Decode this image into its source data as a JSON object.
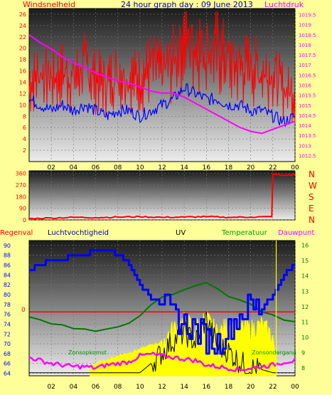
{
  "colors": {
    "background": "#ffff99",
    "wind": "#ff0000",
    "gust": "#0000ff",
    "pressure": "#ff00ff",
    "humidity": "#0000ff",
    "temperature": "#007700",
    "dewpoint": "#ff00ff",
    "uv": "#000000",
    "solar": "#ffff00",
    "rain": "#ff0000",
    "direction": "#ff0000",
    "label_green": "#009900",
    "title": "#000099"
  },
  "chart_data": [
    {
      "type": "line",
      "title": "24 hour graph day : 09 June 2013",
      "y_left_label": "Windsnelheid",
      "y_right_label": "Luchtdruk",
      "x_ticks": [
        "02",
        "04",
        "06",
        "08",
        "10",
        "12",
        "14",
        "16",
        "18",
        "20",
        "22",
        "00"
      ],
      "y_left_ticks": [
        2,
        4,
        6,
        8,
        10,
        12,
        14,
        16,
        18,
        20,
        22,
        24,
        26
      ],
      "y_right_ticks": [
        "1012.5",
        "1013",
        "1013.5",
        "1014",
        "1014.5",
        "1015",
        "1015.5",
        "1016",
        "1016.5",
        "1017",
        "1017.5",
        "1018",
        "1018.5",
        "1019",
        "1019.5"
      ],
      "xlim": [
        0,
        24
      ],
      "ylim_left": [
        0,
        27
      ],
      "ylim_right": [
        1012.2,
        1019.8
      ],
      "series": [
        {
          "role": "wind_gust",
          "axis": "left",
          "x": [
            0,
            1,
            2,
            3,
            4,
            5,
            6,
            7,
            8,
            9,
            10,
            11,
            12,
            13,
            14,
            15,
            16,
            17,
            18,
            19,
            20,
            21,
            22,
            23,
            24
          ],
          "values": [
            14,
            16,
            15,
            16,
            15,
            17,
            15,
            14,
            16,
            15,
            15,
            17,
            16,
            18,
            22,
            21,
            20,
            20,
            18,
            17,
            17,
            16,
            16,
            13,
            12
          ]
        },
        {
          "role": "wind_average",
          "axis": "left",
          "x": [
            0,
            1,
            2,
            3,
            4,
            5,
            6,
            7,
            8,
            9,
            10,
            11,
            12,
            13,
            14,
            15,
            16,
            17,
            18,
            19,
            20,
            21,
            22,
            23,
            24
          ],
          "values": [
            11,
            10,
            9,
            10,
            9,
            10,
            9,
            8,
            9,
            9,
            8,
            9,
            10,
            11,
            13,
            12,
            11,
            11,
            10,
            10,
            9,
            9,
            8,
            7,
            8
          ]
        },
        {
          "role": "pressure",
          "axis": "right",
          "x": [
            0,
            1,
            2,
            3,
            4,
            5,
            6,
            7,
            8,
            9,
            10,
            11,
            12,
            13,
            14,
            15,
            16,
            17,
            18,
            19,
            20,
            21,
            22,
            23,
            24
          ],
          "values": [
            1018.5,
            1018.1,
            1017.8,
            1017.4,
            1017.1,
            1016.9,
            1016.6,
            1016.4,
            1016.2,
            1016.1,
            1015.9,
            1015.7,
            1015.6,
            1015.6,
            1015.4,
            1015.1,
            1014.8,
            1014.5,
            1014.2,
            1013.9,
            1013.7,
            1013.6,
            1013.8,
            1014.0,
            1014.2
          ]
        }
      ]
    },
    {
      "type": "line",
      "y_ticks": [
        0,
        90,
        180,
        270,
        360
      ],
      "direction_labels": [
        "N",
        "W",
        "S",
        "E",
        "N"
      ],
      "ylim": [
        0,
        380
      ],
      "xlim": [
        0,
        24
      ],
      "x_ticks": [],
      "series": [
        {
          "role": "wind_direction",
          "x": [
            0,
            2,
            4,
            6,
            8,
            10,
            12,
            14,
            16,
            18,
            20,
            21.9,
            22.0,
            23,
            24
          ],
          "values": [
            10,
            15,
            20,
            18,
            22,
            25,
            20,
            22,
            25,
            20,
            22,
            25,
            355,
            345,
            350
          ]
        }
      ]
    },
    {
      "type": "line",
      "legend": [
        "Regenval",
        "Luchtvochtigheid",
        "UV",
        "Temperatuur",
        "Dauwpunt"
      ],
      "x_ticks": [
        "02",
        "04",
        "06",
        "08",
        "10",
        "12",
        "14",
        "16",
        "18",
        "20",
        "22",
        "00"
      ],
      "y_left_ticks": [
        64,
        66,
        68,
        70,
        72,
        74,
        76,
        78,
        80,
        82,
        84,
        86,
        88,
        90
      ],
      "y_right_ticks": [
        8,
        9,
        10,
        11,
        12,
        13,
        14,
        15,
        16
      ],
      "rain_axis_label": "0",
      "ylim_left": [
        63.5,
        91
      ],
      "ylim_right": [
        7.5,
        16.3
      ],
      "xlim": [
        0,
        24
      ],
      "annotations": [
        "Zonsopkomst",
        "Zonsondergang"
      ],
      "series": [
        {
          "role": "humidity",
          "axis": "left",
          "x": [
            0,
            1,
            2,
            3,
            4,
            5,
            6,
            7,
            8,
            9,
            10,
            11,
            12,
            13,
            14,
            15,
            16,
            17,
            18,
            19,
            20,
            21,
            22,
            23,
            24
          ],
          "values": [
            85,
            86,
            87,
            87,
            88,
            88,
            89,
            89,
            88,
            86,
            82,
            79,
            78,
            76,
            74,
            73,
            71,
            70,
            73,
            76,
            78,
            77,
            80,
            84,
            86
          ]
        },
        {
          "role": "temperature",
          "axis": "right",
          "x": [
            0,
            1,
            2,
            3,
            4,
            5,
            6,
            7,
            8,
            9,
            10,
            11,
            12,
            13,
            14,
            15,
            16,
            17,
            18,
            19,
            20,
            21,
            22,
            23,
            24
          ],
          "values": [
            11.3,
            11.1,
            10.9,
            10.8,
            10.6,
            10.5,
            10.4,
            10.5,
            10.7,
            10.9,
            11.4,
            12.1,
            12.6,
            12.8,
            13.1,
            13.4,
            13.6,
            13.2,
            12.7,
            12.4,
            12.2,
            11.7,
            11.5,
            11.1,
            11.0
          ]
        },
        {
          "role": "dewpoint",
          "axis": "right",
          "x": [
            0,
            1,
            2,
            3,
            4,
            5,
            6,
            7,
            8,
            9,
            10,
            11,
            12,
            13,
            14,
            15,
            16,
            17,
            18,
            19,
            20,
            21,
            22,
            23,
            24
          ],
          "values": [
            8.7,
            8.5,
            8.3,
            8.2,
            8.1,
            8.1,
            8.0,
            8.2,
            8.3,
            8.4,
            8.8,
            8.9,
            8.8,
            8.7,
            8.6,
            8.5,
            8.2,
            8.1,
            8.0,
            7.9,
            8.0,
            8.1,
            8.2,
            8.4,
            8.5
          ]
        },
        {
          "role": "solar",
          "axis": "right",
          "x": [
            5.5,
            6,
            7,
            8,
            9,
            10,
            11,
            12,
            13,
            14,
            15,
            16,
            17,
            18,
            19,
            20,
            21,
            22,
            22.3
          ],
          "values": [
            8.1,
            8.3,
            8.5,
            8.8,
            9.0,
            9.2,
            9.5,
            9.7,
            10.5,
            11.0,
            10.6,
            11.2,
            10.2,
            10.8,
            10.6,
            10.5,
            10.8,
            10.0,
            8.0
          ]
        },
        {
          "role": "uv",
          "axis": "right",
          "x": [
            0,
            10,
            11,
            12,
            13,
            14,
            15,
            16,
            17,
            18,
            19,
            20,
            21,
            22,
            24
          ],
          "values": [
            7.7,
            7.7,
            8.3,
            9.0,
            9.8,
            10.3,
            9.7,
            11.2,
            9.4,
            9.1,
            8.4,
            8.0,
            7.9,
            7.7,
            7.7
          ]
        },
        {
          "role": "rain",
          "axis": "left",
          "x": [
            0,
            24
          ],
          "values": [
            76.5,
            76.5
          ]
        }
      ],
      "markers": [
        {
          "role": "sunset_line",
          "x": 22.3
        }
      ]
    }
  ]
}
